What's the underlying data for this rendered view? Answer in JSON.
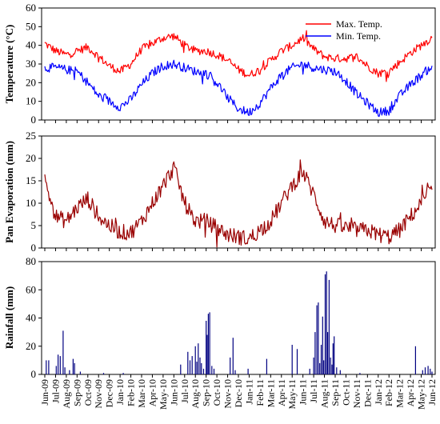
{
  "chart_data": [
    {
      "type": "line",
      "title": "",
      "ylabel": "Temperature (°C)",
      "ylim": [
        0,
        60
      ],
      "yticks": [
        "0",
        "10",
        "20",
        "30",
        "40",
        "50",
        "60"
      ],
      "legend": "top-right",
      "x_range": [
        "Jun-09",
        "Jun-12"
      ],
      "series": [
        {
          "name": "Max. Temp.",
          "color": "#ff0000",
          "anchors": [
            {
              "x": "Jun-09",
              "y": 41
            },
            {
              "x": "Jul-09",
              "y": 37
            },
            {
              "x": "Aug-09",
              "y": 35
            },
            {
              "x": "Sep-09",
              "y": 37
            },
            {
              "x": "Oct-09",
              "y": 39
            },
            {
              "x": "Nov-09",
              "y": 34
            },
            {
              "x": "Dec-09",
              "y": 29
            },
            {
              "x": "Jan-10",
              "y": 26
            },
            {
              "x": "Feb-10",
              "y": 30
            },
            {
              "x": "Mar-10",
              "y": 38
            },
            {
              "x": "Apr-10",
              "y": 41
            },
            {
              "x": "May-10",
              "y": 44
            },
            {
              "x": "Jun-10",
              "y": 45
            },
            {
              "x": "Jul-10",
              "y": 40
            },
            {
              "x": "Aug-10",
              "y": 37
            },
            {
              "x": "Sep-10",
              "y": 37
            },
            {
              "x": "Oct-10",
              "y": 35
            },
            {
              "x": "Nov-10",
              "y": 32
            },
            {
              "x": "Dec-10",
              "y": 27
            },
            {
              "x": "Jan-11",
              "y": 24
            },
            {
              "x": "Feb-11",
              "y": 27
            },
            {
              "x": "Mar-11",
              "y": 32
            },
            {
              "x": "Apr-11",
              "y": 37
            },
            {
              "x": "May-11",
              "y": 40
            },
            {
              "x": "Jun-11",
              "y": 44
            },
            {
              "x": "Jul-11",
              "y": 38
            },
            {
              "x": "Aug-11",
              "y": 34
            },
            {
              "x": "Sep-11",
              "y": 33
            },
            {
              "x": "Oct-11",
              "y": 33
            },
            {
              "x": "Nov-11",
              "y": 34
            },
            {
              "x": "Dec-11",
              "y": 29
            },
            {
              "x": "Jan-12",
              "y": 25
            },
            {
              "x": "Feb-12",
              "y": 26
            },
            {
              "x": "Mar-12",
              "y": 31
            },
            {
              "x": "Apr-12",
              "y": 36
            },
            {
              "x": "May-12",
              "y": 40
            },
            {
              "x": "Jun-12",
              "y": 44
            }
          ]
        },
        {
          "name": "Min. Temp.",
          "color": "#0000ff",
          "anchors": [
            {
              "x": "Jun-09",
              "y": 28
            },
            {
              "x": "Jul-09",
              "y": 28
            },
            {
              "x": "Aug-09",
              "y": 27
            },
            {
              "x": "Sep-09",
              "y": 26
            },
            {
              "x": "Oct-09",
              "y": 20
            },
            {
              "x": "Nov-09",
              "y": 13
            },
            {
              "x": "Dec-09",
              "y": 10
            },
            {
              "x": "Jan-10",
              "y": 7
            },
            {
              "x": "Feb-10",
              "y": 11
            },
            {
              "x": "Mar-10",
              "y": 19
            },
            {
              "x": "Apr-10",
              "y": 25
            },
            {
              "x": "May-10",
              "y": 29
            },
            {
              "x": "Jun-10",
              "y": 30
            },
            {
              "x": "Jul-10",
              "y": 28
            },
            {
              "x": "Aug-10",
              "y": 26
            },
            {
              "x": "Sep-10",
              "y": 25
            },
            {
              "x": "Oct-10",
              "y": 20
            },
            {
              "x": "Nov-10",
              "y": 12
            },
            {
              "x": "Dec-10",
              "y": 6
            },
            {
              "x": "Jan-11",
              "y": 4
            },
            {
              "x": "Feb-11",
              "y": 9
            },
            {
              "x": "Mar-11",
              "y": 17
            },
            {
              "x": "Apr-11",
              "y": 24
            },
            {
              "x": "May-11",
              "y": 28
            },
            {
              "x": "Jun-11",
              "y": 30
            },
            {
              "x": "Jul-11",
              "y": 28
            },
            {
              "x": "Aug-11",
              "y": 27
            },
            {
              "x": "Sep-11",
              "y": 26
            },
            {
              "x": "Oct-11",
              "y": 21
            },
            {
              "x": "Nov-11",
              "y": 14
            },
            {
              "x": "Dec-11",
              "y": 9
            },
            {
              "x": "Jan-12",
              "y": 4
            },
            {
              "x": "Feb-12",
              "y": 5
            },
            {
              "x": "Mar-12",
              "y": 13
            },
            {
              "x": "Apr-12",
              "y": 19
            },
            {
              "x": "May-12",
              "y": 24
            },
            {
              "x": "Jun-12",
              "y": 29
            }
          ]
        }
      ]
    },
    {
      "type": "line",
      "title": "",
      "ylabel": "Pan Evaporation (mm)",
      "ylim": [
        0,
        25
      ],
      "yticks": [
        "0",
        "5",
        "10",
        "15",
        "20",
        "25"
      ],
      "series": [
        {
          "color": "#990000",
          "anchors": [
            {
              "x": "Jun-09",
              "y": 15
            },
            {
              "x": "Jul-09",
              "y": 7
            },
            {
              "x": "Aug-09",
              "y": 6
            },
            {
              "x": "Sep-09",
              "y": 9
            },
            {
              "x": "Oct-09",
              "y": 11
            },
            {
              "x": "Nov-09",
              "y": 7
            },
            {
              "x": "Dec-09",
              "y": 5
            },
            {
              "x": "Jan-10",
              "y": 3.5
            },
            {
              "x": "Feb-10",
              "y": 3.5
            },
            {
              "x": "Mar-10",
              "y": 6
            },
            {
              "x": "Apr-10",
              "y": 10
            },
            {
              "x": "May-10",
              "y": 14
            },
            {
              "x": "Jun-10",
              "y": 18
            },
            {
              "x": "Jul-10",
              "y": 10
            },
            {
              "x": "Aug-10",
              "y": 6
            },
            {
              "x": "Sep-10",
              "y": 6
            },
            {
              "x": "Oct-10",
              "y": 4.5
            },
            {
              "x": "Nov-10",
              "y": 3
            },
            {
              "x": "Dec-10",
              "y": 2.5
            },
            {
              "x": "Jan-11",
              "y": 2
            },
            {
              "x": "Feb-11",
              "y": 4
            },
            {
              "x": "Mar-11",
              "y": 6
            },
            {
              "x": "Apr-11",
              "y": 10
            },
            {
              "x": "May-11",
              "y": 14
            },
            {
              "x": "Jun-11",
              "y": 17
            },
            {
              "x": "Jul-11",
              "y": 12
            },
            {
              "x": "Aug-11",
              "y": 6
            },
            {
              "x": "Sep-11",
              "y": 5
            },
            {
              "x": "Oct-11",
              "y": 4.5
            },
            {
              "x": "Nov-11",
              "y": 4
            },
            {
              "x": "Dec-11",
              "y": 4
            },
            {
              "x": "Jan-12",
              "y": 3
            },
            {
              "x": "Feb-12",
              "y": 2.5
            },
            {
              "x": "Mar-12",
              "y": 4
            },
            {
              "x": "Apr-12",
              "y": 7
            },
            {
              "x": "May-12",
              "y": 10
            },
            {
              "x": "Jun-12",
              "y": 13
            }
          ]
        }
      ]
    },
    {
      "type": "bar",
      "title": "",
      "ylabel": "Rainfall (mm)",
      "ylim": [
        0,
        80
      ],
      "yticks": [
        "0",
        "20",
        "40",
        "60",
        "80"
      ],
      "color": "#000080",
      "events": [
        {
          "x": "Jun-09",
          "d": 5,
          "y": 10
        },
        {
          "x": "Jun-09",
          "d": 12,
          "y": 10
        },
        {
          "x": "Jul-09",
          "d": 3,
          "y": 6
        },
        {
          "x": "Jul-09",
          "d": 8,
          "y": 14
        },
        {
          "x": "Jul-09",
          "d": 14,
          "y": 13
        },
        {
          "x": "Jul-09",
          "d": 22,
          "y": 31
        },
        {
          "x": "Jul-09",
          "d": 27,
          "y": 5
        },
        {
          "x": "Aug-09",
          "d": 10,
          "y": 3
        },
        {
          "x": "Aug-09",
          "d": 20,
          "y": 11
        },
        {
          "x": "Aug-09",
          "d": 24,
          "y": 8
        },
        {
          "x": "Sep-09",
          "d": 10,
          "y": 2
        },
        {
          "x": "Nov-09",
          "d": 15,
          "y": 1
        },
        {
          "x": "Jan-10",
          "d": 10,
          "y": 1
        },
        {
          "x": "Jun-10",
          "d": 20,
          "y": 7
        },
        {
          "x": "Jul-10",
          "d": 10,
          "y": 16
        },
        {
          "x": "Jul-10",
          "d": 16,
          "y": 10
        },
        {
          "x": "Jul-10",
          "d": 22,
          "y": 13
        },
        {
          "x": "Aug-10",
          "d": 1,
          "y": 20
        },
        {
          "x": "Aug-10",
          "d": 5,
          "y": 9
        },
        {
          "x": "Aug-10",
          "d": 9,
          "y": 22
        },
        {
          "x": "Aug-10",
          "d": 14,
          "y": 12
        },
        {
          "x": "Aug-10",
          "d": 18,
          "y": 8
        },
        {
          "x": "Aug-10",
          "d": 24,
          "y": 4
        },
        {
          "x": "Sep-10",
          "d": 1,
          "y": 38
        },
        {
          "x": "Sep-10",
          "d": 4,
          "y": 28
        },
        {
          "x": "Sep-10",
          "d": 7,
          "y": 43
        },
        {
          "x": "Sep-10",
          "d": 11,
          "y": 44
        },
        {
          "x": "Sep-10",
          "d": 17,
          "y": 6
        },
        {
          "x": "Sep-10",
          "d": 23,
          "y": 4
        },
        {
          "x": "Nov-10",
          "d": 8,
          "y": 12
        },
        {
          "x": "Nov-10",
          "d": 16,
          "y": 26
        },
        {
          "x": "Nov-10",
          "d": 22,
          "y": 3
        },
        {
          "x": "Dec-10",
          "d": 28,
          "y": 4
        },
        {
          "x": "Feb-11",
          "d": 20,
          "y": 11
        },
        {
          "x": "May-11",
          "d": 1,
          "y": 21
        },
        {
          "x": "May-11",
          "d": 15,
          "y": 18
        },
        {
          "x": "Jun-11",
          "d": 20,
          "y": 4
        },
        {
          "x": "Jul-11",
          "d": 1,
          "y": 12
        },
        {
          "x": "Jul-11",
          "d": 5,
          "y": 30
        },
        {
          "x": "Jul-11",
          "d": 10,
          "y": 49
        },
        {
          "x": "Jul-11",
          "d": 14,
          "y": 51
        },
        {
          "x": "Jul-11",
          "d": 18,
          "y": 8
        },
        {
          "x": "Jul-11",
          "d": 22,
          "y": 21
        },
        {
          "x": "Jul-11",
          "d": 26,
          "y": 41
        },
        {
          "x": "Jul-11",
          "d": 29,
          "y": 10
        },
        {
          "x": "Aug-11",
          "d": 3,
          "y": 71
        },
        {
          "x": "Aug-11",
          "d": 7,
          "y": 73
        },
        {
          "x": "Aug-11",
          "d": 10,
          "y": 30
        },
        {
          "x": "Aug-11",
          "d": 14,
          "y": 67
        },
        {
          "x": "Aug-11",
          "d": 18,
          "y": 12
        },
        {
          "x": "Aug-11",
          "d": 22,
          "y": 7
        },
        {
          "x": "Aug-11",
          "d": 25,
          "y": 22
        },
        {
          "x": "Aug-11",
          "d": 28,
          "y": 27
        },
        {
          "x": "Sep-11",
          "d": 5,
          "y": 5
        },
        {
          "x": "Sep-11",
          "d": 15,
          "y": 3
        },
        {
          "x": "Nov-11",
          "d": 10,
          "y": 1
        },
        {
          "x": "Apr-12",
          "d": 15,
          "y": 20
        },
        {
          "x": "May-12",
          "d": 5,
          "y": 3
        },
        {
          "x": "May-12",
          "d": 12,
          "y": 5
        },
        {
          "x": "May-12",
          "d": 20,
          "y": 6
        },
        {
          "x": "May-12",
          "d": 26,
          "y": 4
        },
        {
          "x": "Jun-12",
          "d": 1,
          "y": 2
        }
      ]
    }
  ],
  "x_categories": [
    "Jun-09",
    "Jul-09",
    "Aug-09",
    "Sep-09",
    "Oct-09",
    "Nov-09",
    "Dec-09",
    "Jan-10",
    "Feb-10",
    "Mar-10",
    "Apr-10",
    "May-10",
    "Jun-10",
    "Jul-10",
    "Aug-10",
    "Sep-10",
    "Oct-10",
    "Nov-10",
    "Dec-10",
    "Jan-11",
    "Feb-11",
    "Mar-11",
    "Apr-11",
    "May-11",
    "Jun-11",
    "Jul-11",
    "Aug-11",
    "Sep-11",
    "Oct-11",
    "Nov-11",
    "Dec-11",
    "Jan-12",
    "Feb-12",
    "Mar-12",
    "Apr-12",
    "May-12",
    "Jun-12"
  ]
}
